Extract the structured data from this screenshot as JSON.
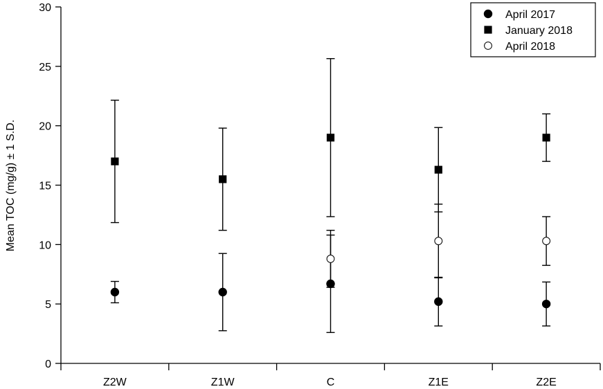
{
  "chart_data": {
    "type": "scatter",
    "title": "",
    "xlabel": "",
    "ylabel": "Mean TOC (mg/g) ± 1 S.D.",
    "ylim": [
      0,
      30
    ],
    "yticks": [
      0,
      5,
      10,
      15,
      20,
      25,
      30
    ],
    "categories": [
      "Z2W",
      "Z1W",
      "C",
      "Z1E",
      "Z2E"
    ],
    "legend_position": "top-right",
    "grid": false,
    "series": [
      {
        "name": "April 2017",
        "marker": "filled-circle",
        "values": [
          6.0,
          6.0,
          6.7,
          5.2,
          5.0
        ],
        "sd": [
          0.9,
          3.25,
          4.1,
          2.05,
          1.85
        ]
      },
      {
        "name": "January 2018",
        "marker": "filled-square",
        "values": [
          17.0,
          15.5,
          19.0,
          16.3,
          19.0
        ],
        "sd": [
          5.15,
          4.3,
          6.65,
          3.55,
          2.0
        ]
      },
      {
        "name": "April 2018",
        "marker": "open-circle",
        "values": [
          null,
          null,
          8.8,
          10.3,
          10.3
        ],
        "sd": [
          null,
          null,
          2.4,
          3.1,
          2.05
        ]
      }
    ]
  }
}
